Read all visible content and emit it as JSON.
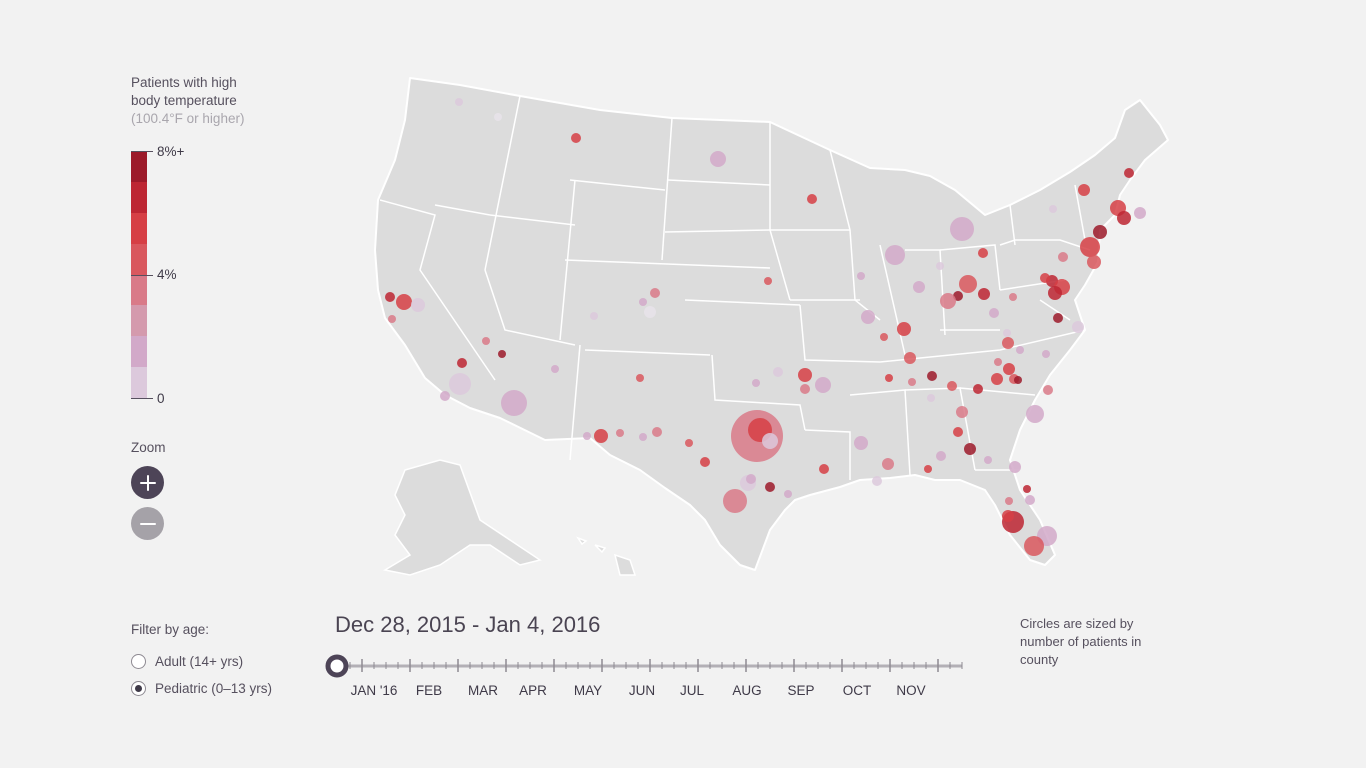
{
  "legend": {
    "title_line1": "Patients with high",
    "title_line2": "body temperature",
    "subtitle": "(100.4°F or higher)",
    "max_label": "8%+",
    "mid_label": "4%",
    "min_label": "0",
    "colors": [
      "#9c1a2a",
      "#bd2633",
      "#d63f45",
      "#d9585e",
      "#d97a88",
      "#d49aad",
      "#d2a9c9",
      "#dcc9dc",
      "#e8e3ea"
    ]
  },
  "zoom": {
    "label": "Zoom",
    "in_icon": "plus-icon",
    "out_icon": "minus-icon"
  },
  "filter": {
    "label": "Filter by age:",
    "options": [
      {
        "label": "Adult (14+ yrs)",
        "selected": false
      },
      {
        "label": "Pediatric (0–13 yrs)",
        "selected": true
      }
    ]
  },
  "timeline": {
    "date_range": "Dec 28, 2015 - Jan 4, 2016",
    "months": [
      "JAN '16",
      "FEB",
      "MAR",
      "APR",
      "MAY",
      "JUN",
      "JUL",
      "AUG",
      "SEP",
      "OCT",
      "NOV"
    ],
    "position_fraction": 0
  },
  "note": "Circles are sized by number of patients in county"
}
